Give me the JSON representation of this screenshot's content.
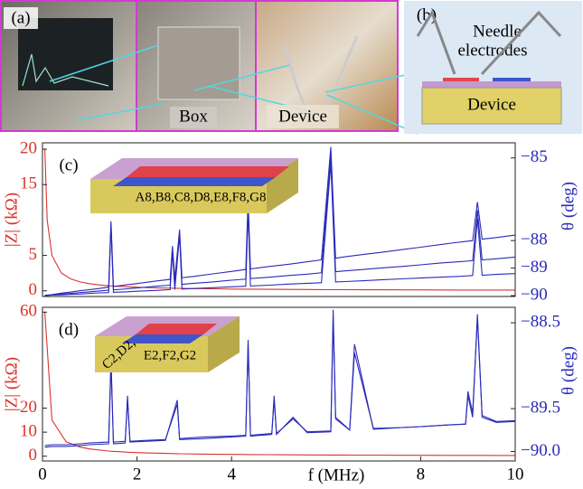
{
  "panel_a": {
    "label": "(a)",
    "box_label": "Box",
    "device_label": "Device"
  },
  "panel_b": {
    "label": "(b)",
    "needle_label": [
      "Needle",
      "electrodes"
    ],
    "device_label": "Device"
  },
  "chart_data": [
    {
      "type": "line",
      "panel_label": "(c)",
      "inset_label": "A8,B8,C8,D8,E8,F8,G8",
      "ylabel": "|Z| (kΩ)",
      "y2label": "θ (deg)",
      "xlim": [
        0,
        10
      ],
      "ylim": [
        -0.8,
        20.9
      ],
      "yticks": [
        0,
        5,
        15,
        20
      ],
      "y2lim": [
        -90.03,
        -84.45
      ],
      "y2ticks": [
        {
          "value": -85,
          "label": "−85"
        },
        {
          "value": -88,
          "label": "−88"
        },
        {
          "value": -89,
          "label": "−89"
        },
        {
          "value": -90,
          "label": "−90"
        }
      ],
      "x": [
        0.05,
        0.1,
        0.2,
        0.4,
        0.6,
        0.8,
        1.0,
        1.2,
        1.4,
        1.45,
        1.5,
        1.8,
        2.0,
        2.4,
        2.7,
        2.75,
        2.8,
        2.9,
        2.95,
        3.2,
        3.6,
        4.0,
        4.3,
        4.35,
        4.4,
        4.8,
        5.2,
        5.6,
        5.9,
        6.1,
        6.2,
        6.4,
        6.8,
        7.2,
        7.6,
        8.0,
        8.4,
        8.8,
        9.1,
        9.2,
        9.3,
        9.6,
        10.0
      ],
      "series": [
        {
          "color": "#d9342b",
          "values": [
            20,
            10,
            5,
            2.5,
            1.67,
            1.25,
            1,
            0.83,
            0.71,
            0.69,
            0.67,
            0.56,
            0.5,
            0.42,
            0.37,
            0.36,
            0.36,
            0.34,
            0.34,
            0.31,
            0.28,
            0.25,
            0.23,
            0.23,
            0.23,
            0.21,
            0.19,
            0.18,
            0.17,
            0.16,
            0.16,
            0.16,
            0.15,
            0.14,
            0.13,
            0.13,
            0.12,
            0.11,
            0.11,
            0.11,
            0.11,
            0.1,
            0.1
          ]
        },
        {
          "color": "#2b2bbb",
          "axis": "y2",
          "values": [
            -90.0,
            -89.99,
            -89.98,
            -89.97,
            -89.95,
            -89.94,
            -89.92,
            -89.9,
            -89.89,
            -87.5,
            -89.88,
            -89.86,
            -89.84,
            -89.81,
            -89.78,
            -88.4,
            -89.78,
            -87.8,
            -89.76,
            -89.74,
            -89.71,
            -89.68,
            -89.66,
            -86.9,
            -89.65,
            -89.62,
            -89.58,
            -89.55,
            -89.53,
            -85.2,
            -89.5,
            -89.49,
            -89.46,
            -89.42,
            -89.39,
            -89.36,
            -89.33,
            -89.3,
            -89.27,
            -87.2,
            -89.26,
            -89.23,
            -89.2
          ]
        },
        {
          "color": "#2b2bbb",
          "axis": "y2",
          "values": [
            -89.99,
            -89.99,
            -89.97,
            -89.94,
            -89.92,
            -89.89,
            -89.86,
            -89.83,
            -89.8,
            -87.4,
            -89.79,
            -89.75,
            -89.72,
            -89.66,
            -89.62,
            -88.3,
            -89.61,
            -87.7,
            -89.59,
            -89.55,
            -89.5,
            -89.44,
            -89.4,
            -86.7,
            -89.38,
            -89.33,
            -89.27,
            -89.22,
            -89.17,
            -84.9,
            -89.13,
            -89.1,
            -89.05,
            -88.99,
            -88.94,
            -88.88,
            -88.82,
            -88.77,
            -88.73,
            -86.9,
            -88.7,
            -88.66,
            -88.6
          ]
        },
        {
          "color": "#2b2bbb",
          "axis": "y2",
          "values": [
            -89.99,
            -89.98,
            -89.96,
            -89.91,
            -89.87,
            -89.82,
            -89.78,
            -89.74,
            -89.69,
            -87.3,
            -89.67,
            -89.6,
            -89.56,
            -89.47,
            -89.41,
            -88.2,
            -89.38,
            -87.6,
            -89.35,
            -89.3,
            -89.21,
            -89.12,
            -89.05,
            -86.5,
            -89.03,
            -88.94,
            -88.86,
            -88.77,
            -88.7,
            -84.6,
            -88.64,
            -88.59,
            -88.5,
            -88.42,
            -88.33,
            -88.24,
            -88.15,
            -88.06,
            -88.0,
            -86.6,
            -87.95,
            -87.89,
            -87.8
          ]
        }
      ]
    },
    {
      "type": "line",
      "panel_label": "(d)",
      "inset_label": [
        "C2,D2,",
        "E2,F2,G2"
      ],
      "ylabel": "|Z| (kΩ)",
      "y2label": "θ (deg)",
      "xlabel": "f (MHz)",
      "xlim": [
        0,
        10
      ],
      "xticks": [
        0,
        2,
        4,
        8,
        10
      ],
      "ylim": [
        -2,
        62
      ],
      "yticks": [
        0,
        10,
        20,
        60
      ],
      "y2lim": [
        -90.11,
        -88.32
      ],
      "y2ticks": [
        {
          "value": -88.5,
          "label": "−88.5"
        },
        {
          "value": -89.5,
          "label": "−89.5"
        },
        {
          "value": -90.0,
          "label": "−90.0"
        }
      ],
      "x": [
        0.05,
        0.2,
        0.5,
        0.8,
        1.0,
        1.4,
        1.45,
        1.5,
        1.75,
        1.8,
        1.85,
        2.2,
        2.6,
        2.85,
        2.9,
        3.4,
        4.0,
        4.3,
        4.35,
        4.4,
        4.85,
        4.9,
        4.95,
        5.3,
        5.6,
        6.1,
        6.15,
        6.2,
        6.5,
        6.6,
        7.0,
        7.6,
        8.0,
        8.6,
        8.95,
        9.0,
        9.1,
        9.2,
        9.3,
        9.6,
        10.0
      ],
      "series": [
        {
          "color": "#d9342b",
          "values": [
            60,
            15,
            6,
            3.75,
            3,
            2.14,
            2.07,
            2,
            1.71,
            1.67,
            1.62,
            1.36,
            1.15,
            1.05,
            1.03,
            0.88,
            0.75,
            0.7,
            0.69,
            0.68,
            0.62,
            0.61,
            0.61,
            0.57,
            0.54,
            0.49,
            0.49,
            0.48,
            0.46,
            0.45,
            0.43,
            0.39,
            0.38,
            0.35,
            0.34,
            0.33,
            0.33,
            0.33,
            0.32,
            0.31,
            0.3
          ]
        },
        {
          "color": "#2b2bbb",
          "axis": "y2",
          "values": [
            -89.95,
            -89.94,
            -89.94,
            -89.93,
            -89.92,
            -89.91,
            -88.9,
            -89.91,
            -89.9,
            -89.35,
            -89.89,
            -89.88,
            -89.87,
            -89.4,
            -89.86,
            -89.85,
            -89.83,
            -89.82,
            -88.7,
            -89.82,
            -89.8,
            -89.35,
            -89.8,
            -89.6,
            -89.78,
            -89.77,
            -88.35,
            -89.6,
            -89.75,
            -88.75,
            -89.74,
            -89.72,
            -89.71,
            -89.69,
            -89.68,
            -89.35,
            -89.6,
            -88.4,
            -89.6,
            -89.66,
            -89.65
          ]
        },
        {
          "color": "#2b2bbb",
          "axis": "y2",
          "values": [
            -89.93,
            -89.92,
            -89.92,
            -89.91,
            -89.9,
            -89.89,
            -89.0,
            -89.89,
            -89.88,
            -89.4,
            -89.88,
            -89.87,
            -89.86,
            -89.45,
            -89.85,
            -89.83,
            -89.82,
            -89.81,
            -88.75,
            -89.81,
            -89.79,
            -89.4,
            -89.79,
            -89.62,
            -89.77,
            -89.76,
            -88.45,
            -89.62,
            -89.75,
            -88.85,
            -89.73,
            -89.72,
            -89.71,
            -89.69,
            -89.68,
            -89.3,
            -89.55,
            -88.45,
            -89.58,
            -89.65,
            -89.64
          ]
        }
      ]
    }
  ]
}
